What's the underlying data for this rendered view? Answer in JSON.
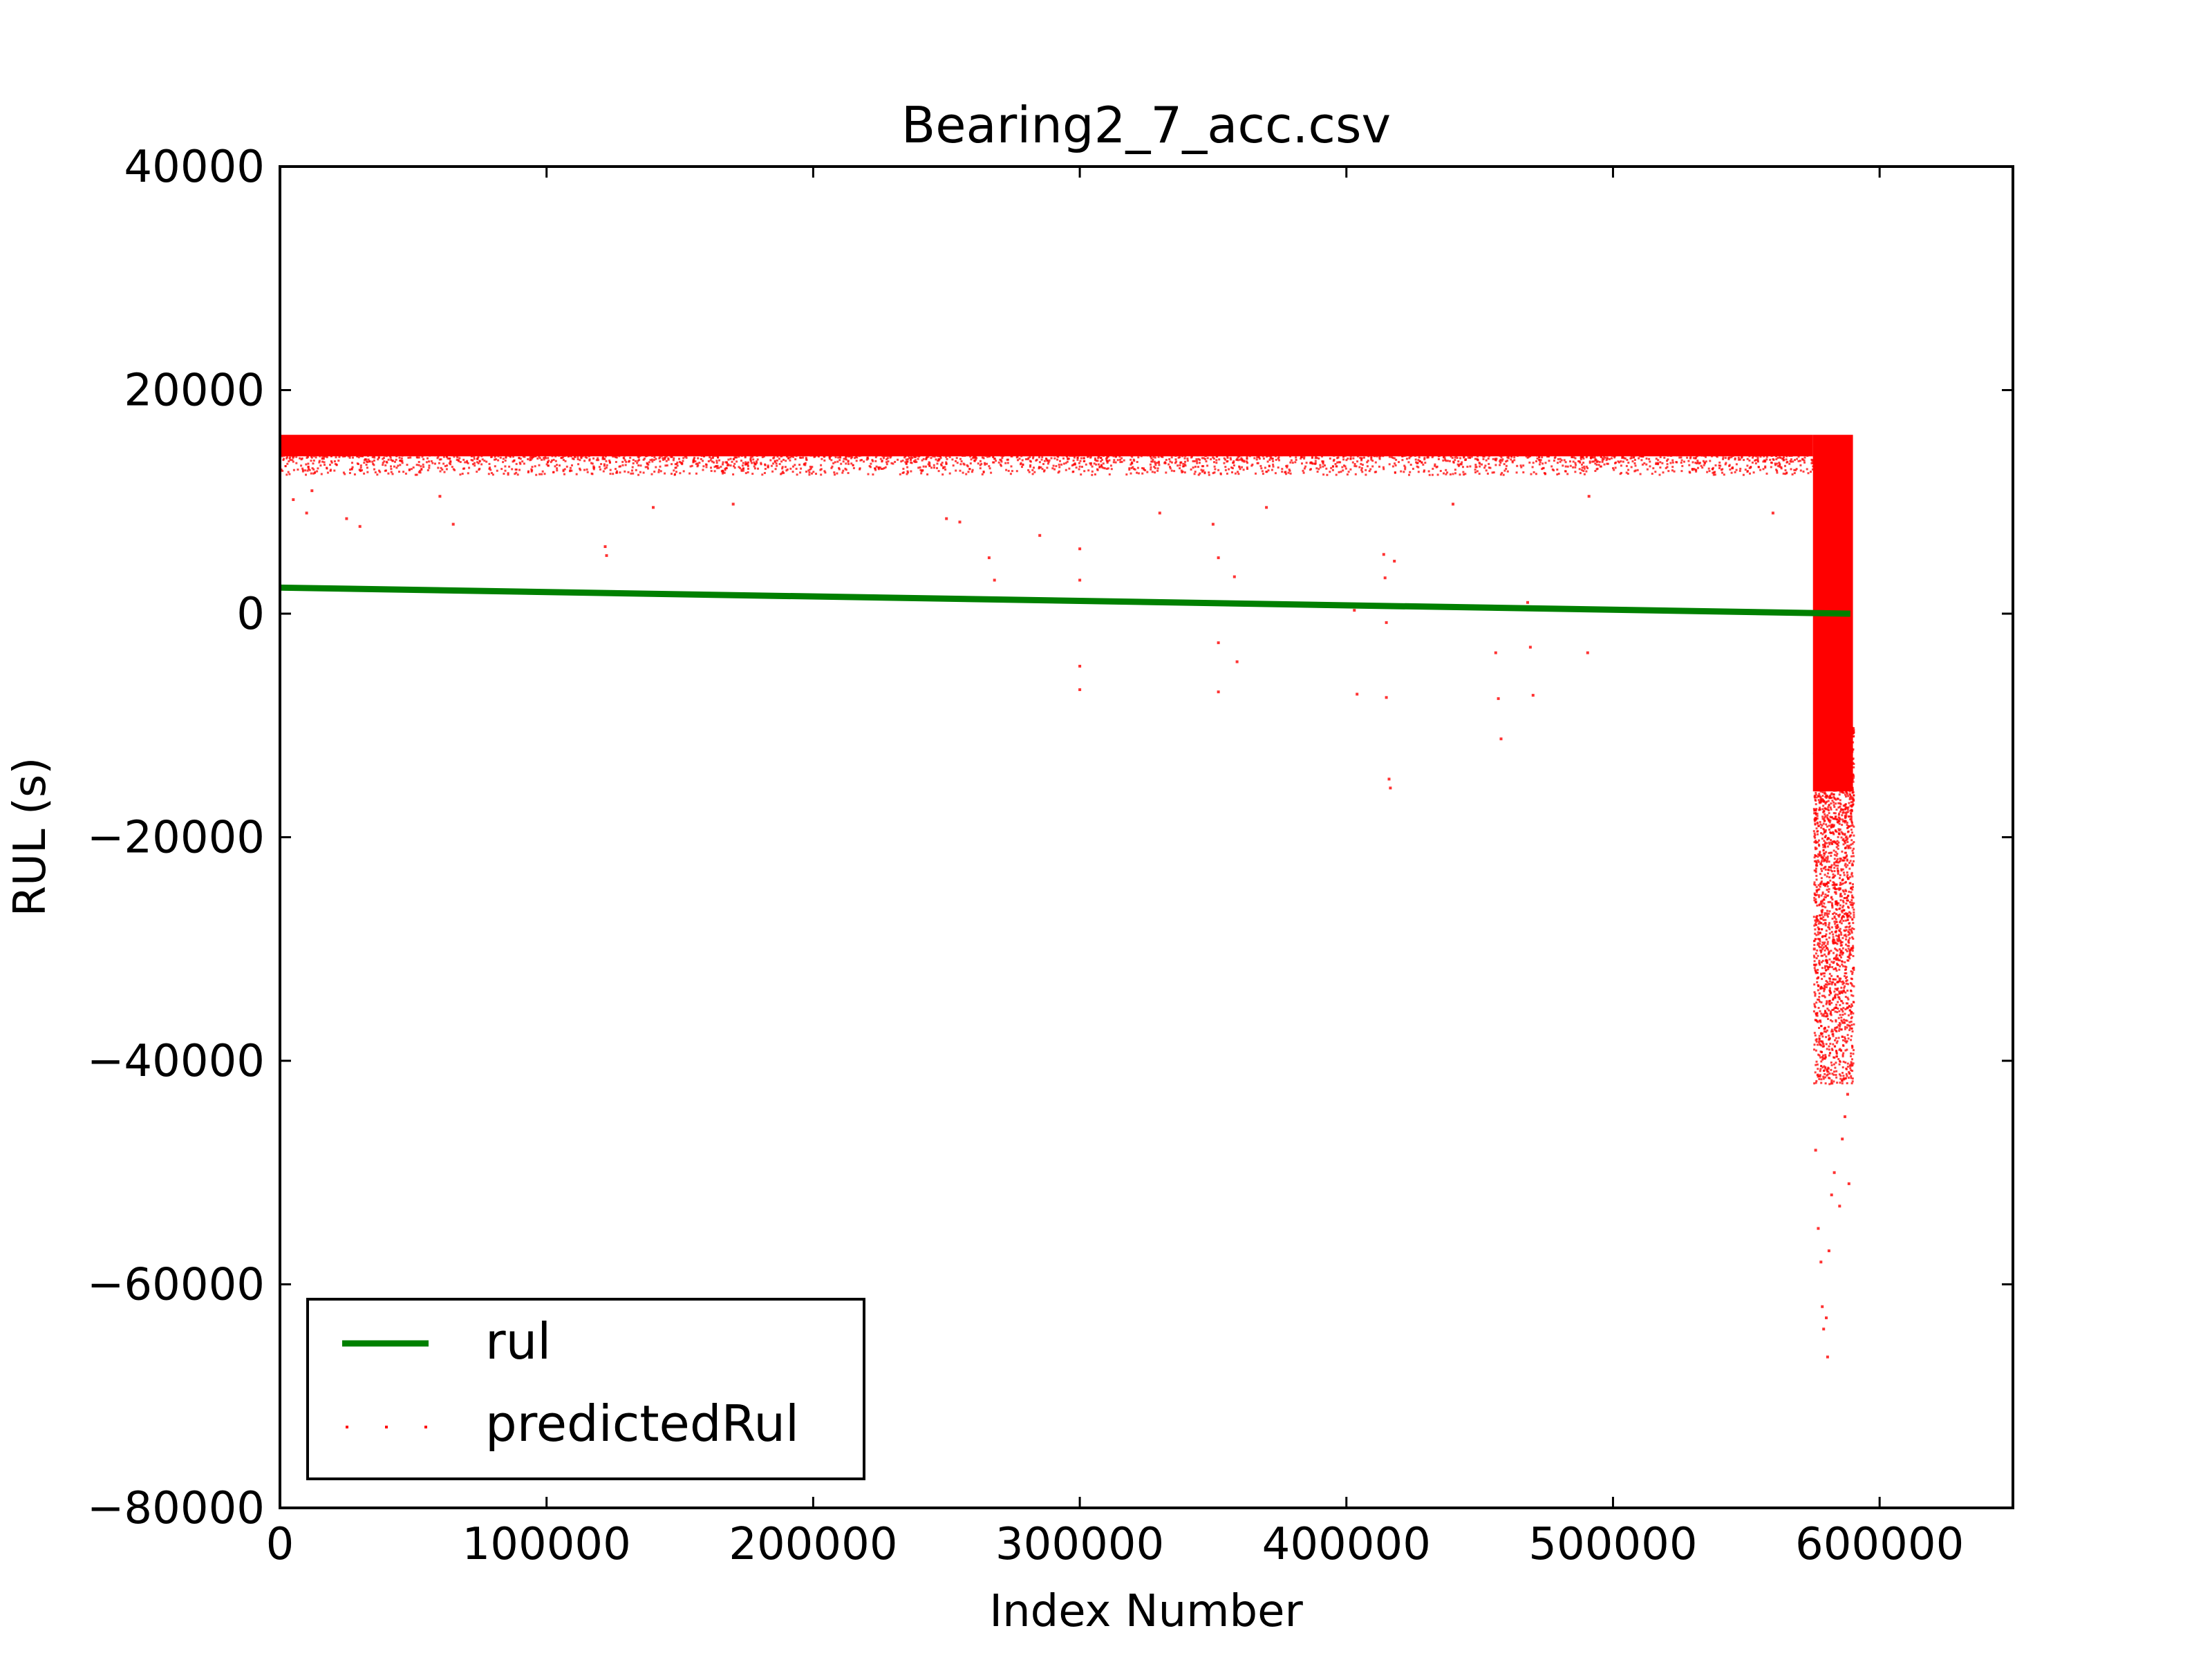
{
  "colors": {
    "rul": "#008000",
    "predicted": "#ff0000",
    "axes": "#000000",
    "background": "#ffffff"
  },
  "chart_data": {
    "type": "scatter",
    "title": "Bearing2_7_acc.csv",
    "xlabel": "Index Number",
    "ylabel": "RUL (s)",
    "xlim": [
      0,
      650000
    ],
    "ylim": [
      -80000,
      40000
    ],
    "xticks": [
      0,
      100000,
      200000,
      300000,
      400000,
      500000,
      600000
    ],
    "xtick_labels": [
      "0",
      "100000",
      "200000",
      "300000",
      "400000",
      "500000",
      "600000"
    ],
    "yticks": [
      -80000,
      -60000,
      -40000,
      -20000,
      0,
      20000,
      40000
    ],
    "ytick_labels": [
      "−80000",
      "−60000",
      "−40000",
      "−20000",
      "0",
      "20000",
      "40000"
    ],
    "grid": false,
    "legend": {
      "location": "lower-left",
      "entries": [
        "rul",
        "predictedRul"
      ]
    },
    "series": [
      {
        "name": "rul",
        "kind": "line",
        "color": "#008000",
        "x": [
          0,
          589000
        ],
        "y": [
          2330,
          0
        ]
      },
      {
        "name": "predictedRul",
        "kind": "scatter",
        "color": "#ff0000",
        "bands": [
          {
            "x": [
              0,
              575000
            ],
            "y_max": 16000,
            "y_dense_min": 12500
          },
          {
            "x": [
              575000,
              590000
            ],
            "y_max": 16000,
            "y_dense_min": -42000
          }
        ],
        "x": [
          5000,
          10000,
          12000,
          25000,
          30000,
          60000,
          65000,
          122000,
          122500,
          140000,
          170000,
          250000,
          255000,
          266000,
          268000,
          285000,
          300000,
          300000,
          300000,
          300000,
          330000,
          350000,
          352000,
          352000,
          352000,
          358000,
          359000,
          370000,
          403000,
          404000,
          414000,
          414500,
          415000,
          415000,
          416000,
          416500,
          418000,
          440000,
          456000,
          457000,
          458000,
          458500,
          468000,
          469000,
          470000,
          490000,
          490500,
          491000,
          560000,
          575500,
          576000,
          577000,
          578000,
          578500,
          579000,
          580000,
          580500,
          581000,
          582000,
          583000,
          585000,
          586000,
          587000,
          588000,
          588500
        ],
        "y": [
          10200,
          9000,
          11000,
          8500,
          7800,
          10500,
          8000,
          6000,
          5200,
          9500,
          9800,
          8500,
          8200,
          5000,
          3000,
          7000,
          5800,
          3000,
          -4700,
          -6800,
          9000,
          8000,
          5000,
          -2600,
          -7000,
          3300,
          -4300,
          9500,
          300,
          -7200,
          5300,
          3200,
          -800,
          -7500,
          -14800,
          -15600,
          4700,
          9800,
          -3500,
          -7600,
          -11200,
          500,
          1000,
          -3000,
          -7300,
          500,
          -3500,
          10500,
          9000,
          -30000,
          -48000,
          -55000,
          -58000,
          -62000,
          -64000,
          -63000,
          -66500,
          -57000,
          -52000,
          -50000,
          -53000,
          -47000,
          -45000,
          -43000,
          -51000
        ]
      }
    ]
  }
}
